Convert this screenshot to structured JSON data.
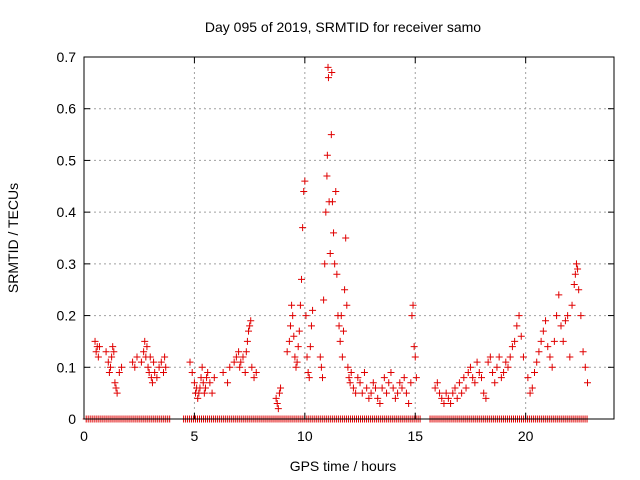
{
  "chart_data": {
    "type": "scatter",
    "title": "Day 095 of 2019, SRMTID for receiver samo",
    "xlabel": "GPS time / hours",
    "ylabel": "SRMTID / TECUs",
    "xlim": [
      0,
      24
    ],
    "ylim": [
      0,
      0.7
    ],
    "xticks": [
      0,
      5,
      10,
      15,
      20
    ],
    "yticks": [
      0,
      0.1,
      0.2,
      0.3,
      0.4,
      0.5,
      0.6,
      0.7
    ],
    "xtick_labels": [
      "0",
      "5",
      "10",
      "15",
      "20"
    ],
    "ytick_labels": [
      "0",
      "0.1",
      "0.2",
      "0.3",
      "0.4",
      "0.5",
      "0.6",
      "0.7"
    ],
    "grid": true,
    "marker": "+",
    "color": "#e00000",
    "series": [
      {
        "name": "SRMTID",
        "points": [
          [
            0.5,
            0.15
          ],
          [
            0.55,
            0.13
          ],
          [
            0.6,
            0.14
          ],
          [
            0.65,
            0.12
          ],
          [
            0.7,
            0.14
          ],
          [
            1.0,
            0.13
          ],
          [
            1.1,
            0.11
          ],
          [
            1.15,
            0.09
          ],
          [
            1.2,
            0.1
          ],
          [
            1.25,
            0.12
          ],
          [
            1.3,
            0.14
          ],
          [
            1.35,
            0.13
          ],
          [
            1.4,
            0.07
          ],
          [
            1.45,
            0.06
          ],
          [
            1.5,
            0.05
          ],
          [
            1.6,
            0.09
          ],
          [
            1.7,
            0.1
          ],
          [
            2.2,
            0.11
          ],
          [
            2.3,
            0.1
          ],
          [
            2.4,
            0.12
          ],
          [
            2.6,
            0.11
          ],
          [
            2.7,
            0.13
          ],
          [
            2.75,
            0.15
          ],
          [
            2.8,
            0.12
          ],
          [
            2.85,
            0.14
          ],
          [
            2.9,
            0.1
          ],
          [
            2.95,
            0.09
          ],
          [
            3.0,
            0.12
          ],
          [
            3.05,
            0.08
          ],
          [
            3.1,
            0.07
          ],
          [
            3.15,
            0.11
          ],
          [
            3.2,
            0.09
          ],
          [
            3.3,
            0.08
          ],
          [
            3.4,
            0.1
          ],
          [
            3.5,
            0.11
          ],
          [
            3.6,
            0.09
          ],
          [
            3.65,
            0.12
          ],
          [
            3.7,
            0.1
          ],
          [
            4.8,
            0.11
          ],
          [
            4.9,
            0.09
          ],
          [
            5.0,
            0.07
          ],
          [
            5.05,
            0.05
          ],
          [
            5.1,
            0.06
          ],
          [
            5.15,
            0.04
          ],
          [
            5.2,
            0.05
          ],
          [
            5.25,
            0.06
          ],
          [
            5.3,
            0.08
          ],
          [
            5.35,
            0.1
          ],
          [
            5.4,
            0.07
          ],
          [
            5.45,
            0.05
          ],
          [
            5.5,
            0.06
          ],
          [
            5.55,
            0.08
          ],
          [
            5.6,
            0.09
          ],
          [
            5.7,
            0.07
          ],
          [
            5.8,
            0.05
          ],
          [
            5.9,
            0.08
          ],
          [
            6.3,
            0.09
          ],
          [
            6.5,
            0.07
          ],
          [
            6.6,
            0.1
          ],
          [
            6.8,
            0.11
          ],
          [
            6.9,
            0.12
          ],
          [
            7.0,
            0.13
          ],
          [
            7.05,
            0.1
          ],
          [
            7.1,
            0.11
          ],
          [
            7.2,
            0.12
          ],
          [
            7.3,
            0.09
          ],
          [
            7.35,
            0.13
          ],
          [
            7.4,
            0.15
          ],
          [
            7.45,
            0.17
          ],
          [
            7.5,
            0.18
          ],
          [
            7.55,
            0.19
          ],
          [
            7.6,
            0.1
          ],
          [
            7.7,
            0.08
          ],
          [
            7.8,
            0.09
          ],
          [
            8.7,
            0.04
          ],
          [
            8.75,
            0.03
          ],
          [
            8.8,
            0.02
          ],
          [
            8.85,
            0.05
          ],
          [
            8.9,
            0.06
          ],
          [
            9.2,
            0.13
          ],
          [
            9.3,
            0.15
          ],
          [
            9.35,
            0.18
          ],
          [
            9.4,
            0.22
          ],
          [
            9.45,
            0.2
          ],
          [
            9.5,
            0.16
          ],
          [
            9.55,
            0.12
          ],
          [
            9.6,
            0.1
          ],
          [
            9.65,
            0.11
          ],
          [
            9.7,
            0.14
          ],
          [
            9.75,
            0.17
          ],
          [
            9.8,
            0.22
          ],
          [
            9.85,
            0.27
          ],
          [
            9.9,
            0.37
          ],
          [
            9.95,
            0.44
          ],
          [
            10.0,
            0.46
          ],
          [
            10.05,
            0.2
          ],
          [
            10.1,
            0.12
          ],
          [
            10.15,
            0.09
          ],
          [
            10.2,
            0.08
          ],
          [
            10.25,
            0.14
          ],
          [
            10.3,
            0.18
          ],
          [
            10.35,
            0.21
          ],
          [
            10.7,
            0.12
          ],
          [
            10.75,
            0.1
          ],
          [
            10.8,
            0.08
          ],
          [
            10.85,
            0.23
          ],
          [
            10.9,
            0.3
          ],
          [
            10.95,
            0.4
          ],
          [
            11.0,
            0.47
          ],
          [
            11.02,
            0.51
          ],
          [
            11.05,
            0.68
          ],
          [
            11.07,
            0.66
          ],
          [
            11.1,
            0.42
          ],
          [
            11.15,
            0.32
          ],
          [
            11.2,
            0.55
          ],
          [
            11.22,
            0.67
          ],
          [
            11.25,
            0.42
          ],
          [
            11.3,
            0.36
          ],
          [
            11.35,
            0.3
          ],
          [
            11.4,
            0.44
          ],
          [
            11.45,
            0.28
          ],
          [
            11.5,
            0.2
          ],
          [
            11.55,
            0.18
          ],
          [
            11.6,
            0.15
          ],
          [
            11.65,
            0.2
          ],
          [
            11.7,
            0.12
          ],
          [
            11.75,
            0.17
          ],
          [
            11.8,
            0.25
          ],
          [
            11.85,
            0.35
          ],
          [
            11.9,
            0.22
          ],
          [
            11.95,
            0.1
          ],
          [
            12.0,
            0.08
          ],
          [
            12.05,
            0.07
          ],
          [
            12.1,
            0.09
          ],
          [
            12.2,
            0.06
          ],
          [
            12.3,
            0.05
          ],
          [
            12.4,
            0.08
          ],
          [
            12.5,
            0.07
          ],
          [
            12.6,
            0.05
          ],
          [
            12.7,
            0.09
          ],
          [
            12.8,
            0.06
          ],
          [
            12.9,
            0.04
          ],
          [
            13.0,
            0.05
          ],
          [
            13.1,
            0.07
          ],
          [
            13.2,
            0.06
          ],
          [
            13.3,
            0.04
          ],
          [
            13.4,
            0.03
          ],
          [
            13.5,
            0.06
          ],
          [
            13.6,
            0.08
          ],
          [
            13.7,
            0.05
          ],
          [
            13.8,
            0.07
          ],
          [
            13.9,
            0.09
          ],
          [
            14.0,
            0.06
          ],
          [
            14.1,
            0.04
          ],
          [
            14.2,
            0.05
          ],
          [
            14.3,
            0.07
          ],
          [
            14.4,
            0.06
          ],
          [
            14.5,
            0.08
          ],
          [
            14.6,
            0.05
          ],
          [
            14.7,
            0.03
          ],
          [
            14.8,
            0.07
          ],
          [
            14.85,
            0.2
          ],
          [
            14.9,
            0.22
          ],
          [
            14.95,
            0.14
          ],
          [
            15.0,
            0.12
          ],
          [
            15.05,
            0.08
          ],
          [
            15.9,
            0.06
          ],
          [
            16.0,
            0.07
          ],
          [
            16.1,
            0.05
          ],
          [
            16.2,
            0.04
          ],
          [
            16.3,
            0.03
          ],
          [
            16.4,
            0.05
          ],
          [
            16.5,
            0.04
          ],
          [
            16.6,
            0.03
          ],
          [
            16.7,
            0.05
          ],
          [
            16.8,
            0.06
          ],
          [
            16.9,
            0.04
          ],
          [
            17.0,
            0.07
          ],
          [
            17.1,
            0.05
          ],
          [
            17.2,
            0.08
          ],
          [
            17.3,
            0.06
          ],
          [
            17.4,
            0.09
          ],
          [
            17.5,
            0.1
          ],
          [
            17.6,
            0.08
          ],
          [
            17.7,
            0.07
          ],
          [
            17.8,
            0.11
          ],
          [
            17.9,
            0.09
          ],
          [
            18.0,
            0.08
          ],
          [
            18.1,
            0.05
          ],
          [
            18.2,
            0.04
          ],
          [
            18.3,
            0.11
          ],
          [
            18.4,
            0.12
          ],
          [
            18.5,
            0.09
          ],
          [
            18.6,
            0.07
          ],
          [
            18.7,
            0.1
          ],
          [
            18.8,
            0.12
          ],
          [
            18.9,
            0.08
          ],
          [
            19.0,
            0.09
          ],
          [
            19.1,
            0.11
          ],
          [
            19.2,
            0.1
          ],
          [
            19.3,
            0.12
          ],
          [
            19.4,
            0.14
          ],
          [
            19.5,
            0.15
          ],
          [
            19.6,
            0.18
          ],
          [
            19.7,
            0.2
          ],
          [
            19.8,
            0.16
          ],
          [
            19.9,
            0.12
          ],
          [
            20.1,
            0.08
          ],
          [
            20.2,
            0.05
          ],
          [
            20.3,
            0.06
          ],
          [
            20.4,
            0.09
          ],
          [
            20.5,
            0.11
          ],
          [
            20.6,
            0.13
          ],
          [
            20.7,
            0.15
          ],
          [
            20.8,
            0.17
          ],
          [
            20.9,
            0.19
          ],
          [
            21.0,
            0.14
          ],
          [
            21.1,
            0.12
          ],
          [
            21.2,
            0.1
          ],
          [
            21.3,
            0.15
          ],
          [
            21.4,
            0.2
          ],
          [
            21.5,
            0.24
          ],
          [
            21.6,
            0.18
          ],
          [
            21.7,
            0.15
          ],
          [
            21.8,
            0.19
          ],
          [
            21.9,
            0.2
          ],
          [
            22.0,
            0.12
          ],
          [
            22.1,
            0.22
          ],
          [
            22.2,
            0.26
          ],
          [
            22.25,
            0.28
          ],
          [
            22.3,
            0.3
          ],
          [
            22.35,
            0.29
          ],
          [
            22.4,
            0.25
          ],
          [
            22.5,
            0.2
          ],
          [
            22.6,
            0.13
          ],
          [
            22.7,
            0.1
          ],
          [
            22.8,
            0.07
          ]
        ]
      },
      {
        "name": "SRMTID zero baseline",
        "x_start": 0.1,
        "x_end": 22.8,
        "x_step": 0.09,
        "y": 0.0,
        "gaps": [
          [
            3.9,
            4.5
          ],
          [
            15.3,
            15.6
          ]
        ]
      }
    ]
  }
}
